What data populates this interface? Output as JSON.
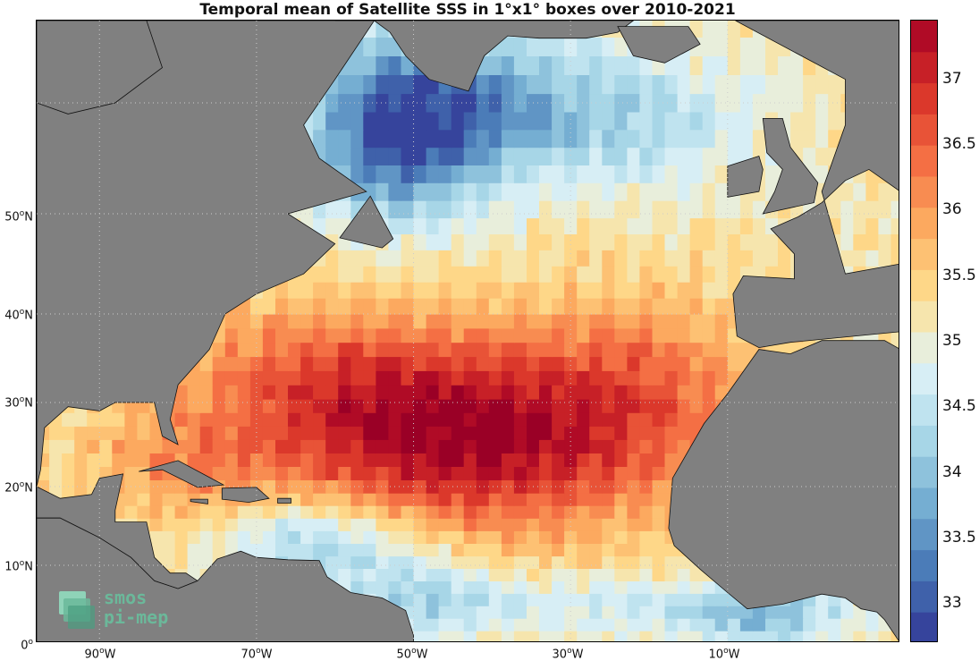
{
  "title": "Temporal mean of Satellite SSS in 1°x1° boxes over 2010-2021",
  "map": {
    "region": "North Atlantic Ocean",
    "variable": "Satellite SSS",
    "lat_ticks": [
      {
        "deg": "50",
        "suffix": "N"
      },
      {
        "deg": "40",
        "suffix": "N"
      },
      {
        "deg": "30",
        "suffix": "N"
      },
      {
        "deg": "20",
        "suffix": "N"
      },
      {
        "deg": "10",
        "suffix": "N"
      },
      {
        "deg": "0",
        "suffix": ""
      }
    ],
    "lon_ticks": [
      {
        "deg": "90",
        "suffix": "W"
      },
      {
        "deg": "70",
        "suffix": "W"
      },
      {
        "deg": "50",
        "suffix": "W"
      },
      {
        "deg": "30",
        "suffix": "W"
      },
      {
        "deg": "10",
        "suffix": "W"
      }
    ],
    "land_color": "#808080",
    "no_data_color": "#ffffff",
    "grid": true
  },
  "colorbar": {
    "min": 32.7,
    "max": 37.45,
    "tick_labels": [
      "33",
      "33.5",
      "34",
      "34.5",
      "35",
      "35.5",
      "36",
      "36.5",
      "37"
    ],
    "tick_values": [
      33,
      33.5,
      34,
      34.5,
      35,
      35.5,
      36,
      36.5,
      37
    ],
    "colors": [
      "#313695",
      "#4575b4",
      "#74add1",
      "#abd9e9",
      "#e0f3f8",
      "#fee090",
      "#fdae61",
      "#f46d43",
      "#d73027",
      "#a50026"
    ]
  },
  "logo": {
    "line1": "smos",
    "line2": "pi-mep",
    "colors": [
      "#8fd3b8",
      "#6bb89a",
      "#4a9e80"
    ]
  }
}
